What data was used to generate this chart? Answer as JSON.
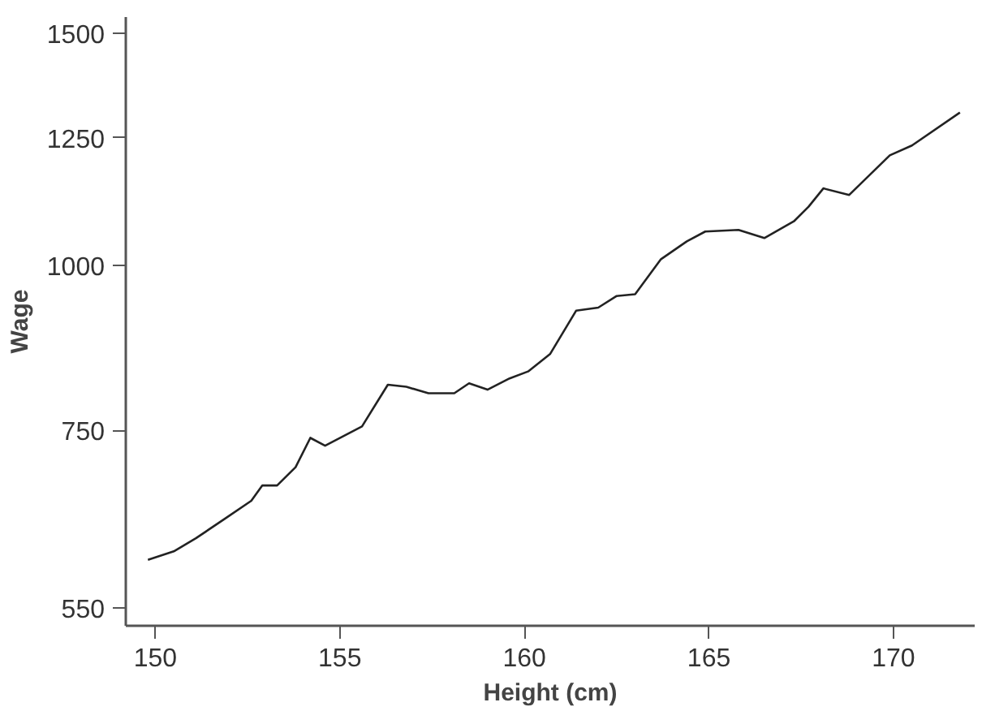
{
  "chart_data": {
    "type": "line",
    "xlabel": "Height (cm)",
    "ylabel": "Wage",
    "log": "y",
    "grid": false,
    "marker": "none",
    "line_style": "solid",
    "xlim": [
      149.2,
      172.2
    ],
    "xticks": [
      150,
      155,
      160,
      165,
      170
    ],
    "ylim": [
      533,
      1543
    ],
    "yticks": [
      550,
      750,
      1000,
      1250,
      1500
    ],
    "x": [
      149.8,
      150.5,
      151.1,
      151.9,
      152.6,
      152.9,
      153.3,
      153.8,
      154.2,
      154.6,
      155.6,
      156.3,
      156.8,
      157.4,
      158.1,
      158.5,
      159.0,
      159.6,
      160.1,
      160.7,
      161.4,
      162.0,
      162.5,
      163.0,
      163.7,
      164.4,
      164.9,
      165.8,
      166.5,
      167.3,
      167.7,
      168.1,
      168.8,
      169.9,
      170.5,
      171.8
    ],
    "series": [
      {
        "color": "#222222",
        "values": [
          598,
          607,
          621,
          643,
          663,
          681,
          681,
          703,
          740,
          730,
          755,
          812,
          809,
          800,
          800,
          814,
          805,
          821,
          831,
          857,
          924,
          929,
          948,
          951,
          1011,
          1043,
          1061,
          1064,
          1049,
          1080,
          1108,
          1144,
          1131,
          1212,
          1233,
          1306
        ]
      }
    ]
  }
}
